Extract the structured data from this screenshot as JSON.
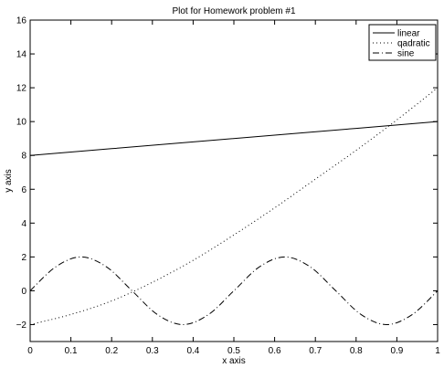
{
  "chart_data": {
    "type": "line",
    "title": "Plot for Homework problem #1",
    "xlabel": "x axis",
    "ylabel": "y axis",
    "xlim": [
      0,
      1
    ],
    "ylim": [
      -3,
      16
    ],
    "xticks": [
      0,
      0.1,
      0.2,
      0.3,
      0.4,
      0.5,
      0.6,
      0.7,
      0.8,
      0.9,
      1
    ],
    "xtick_labels": [
      "0",
      "0.1",
      "0.2",
      "0.3",
      "0.4",
      "0.5",
      "0.6",
      "0.7",
      "0.8",
      "0.9",
      "1"
    ],
    "yticks": [
      -2,
      0,
      2,
      4,
      6,
      8,
      10,
      12,
      14,
      16
    ],
    "ytick_labels": [
      "−2",
      "0",
      "2",
      "4",
      "6",
      "8",
      "10",
      "12",
      "14",
      "16"
    ],
    "grid": false,
    "legend_position": "top-right",
    "series": [
      {
        "name": "linear",
        "linestyle": "solid",
        "color": "#000000",
        "x": [
          0,
          0.2,
          0.4,
          0.6,
          0.8,
          1
        ],
        "y": [
          8,
          8.4,
          8.8,
          9.2,
          9.6,
          10
        ]
      },
      {
        "name": "qadratic",
        "linestyle": "dotted",
        "color": "#000000",
        "x": [
          0,
          0.1,
          0.2,
          0.3,
          0.4,
          0.5,
          0.6,
          0.7,
          0.8,
          0.9,
          1
        ],
        "y": [
          -2,
          -1.4,
          -0.6,
          0.5,
          1.8,
          3.3,
          4.9,
          6.6,
          8.3,
          10.1,
          12
        ]
      },
      {
        "name": "sine",
        "linestyle": "dashdot",
        "color": "#000000",
        "x": [
          0,
          0.0625,
          0.125,
          0.1875,
          0.25,
          0.3125,
          0.375,
          0.4375,
          0.5,
          0.5625,
          0.625,
          0.6875,
          0.75,
          0.8125,
          0.875,
          0.9375,
          1
        ],
        "y": [
          0,
          1.41,
          2,
          1.41,
          0,
          -1.41,
          -2,
          -1.41,
          0,
          1.41,
          2,
          1.41,
          0,
          -1.41,
          -2,
          -1.41,
          0
        ]
      }
    ]
  }
}
